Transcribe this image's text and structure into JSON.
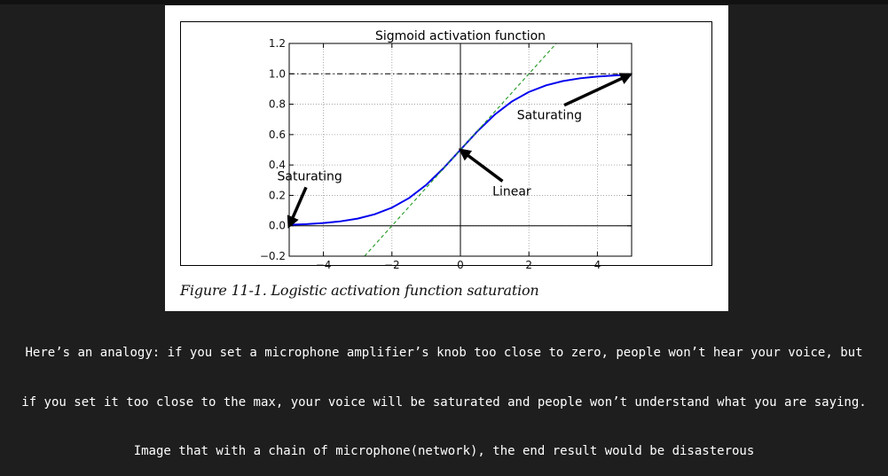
{
  "figure": {
    "caption": "Figure 11-1. Logistic activation function saturation"
  },
  "chart_data": {
    "type": "line",
    "title": "Sigmoid activation function",
    "xlabel": "",
    "ylabel": "",
    "xlim": [
      -5,
      5
    ],
    "ylim": [
      -0.2,
      1.2
    ],
    "x_ticks": [
      -4,
      -2,
      0,
      2,
      4
    ],
    "x_tick_labels": [
      "−4",
      "−2",
      "0",
      "2",
      "4"
    ],
    "y_ticks": [
      -0.2,
      0.0,
      0.2,
      0.4,
      0.6,
      0.8,
      1.0,
      1.2
    ],
    "y_tick_labels": [
      "−0.2",
      "0.0",
      "0.2",
      "0.4",
      "0.6",
      "0.8",
      "1.0",
      "1.2"
    ],
    "grid": true,
    "series": [
      {
        "style": "solid",
        "color": "#0000ee",
        "x": [
          -5,
          -4.5,
          -4,
          -3.5,
          -3,
          -2.5,
          -2,
          -1.5,
          -1,
          -0.5,
          0,
          0.5,
          1,
          1.5,
          2,
          2.5,
          3,
          3.5,
          4,
          4.5,
          5
        ],
        "y": [
          0.0067,
          0.011,
          0.018,
          0.0293,
          0.0474,
          0.0759,
          0.1192,
          0.1824,
          0.2689,
          0.3775,
          0.5,
          0.6225,
          0.7311,
          0.8176,
          0.8808,
          0.9241,
          0.9526,
          0.9707,
          0.982,
          0.989,
          0.9933
        ]
      },
      {
        "style": "dashed",
        "color": "#229922",
        "x": [
          -2.8,
          2.8
        ],
        "y": [
          -0.2,
          1.2
        ]
      }
    ],
    "reference_lines": [
      {
        "orientation": "horizontal",
        "value": 0,
        "style": "solid",
        "color": "#000000"
      },
      {
        "orientation": "horizontal",
        "value": 1,
        "style": "dashdot",
        "color": "#000000"
      },
      {
        "orientation": "vertical",
        "value": 0,
        "style": "solid",
        "color": "#000000"
      }
    ],
    "annotations": [
      {
        "text": "Saturating",
        "point": [
          5,
          1.0
        ],
        "text_at": [
          2.6,
          0.7
        ]
      },
      {
        "text": "Saturating",
        "point": [
          -5,
          0.0
        ],
        "text_at": [
          -4.4,
          0.3
        ]
      },
      {
        "text": "Linear",
        "point": [
          0,
          0.5
        ],
        "text_at": [
          1.5,
          0.2
        ]
      }
    ]
  },
  "note": {
    "lines": [
      "Here’s an analogy: if you set a microphone amplifier’s knob too close to zero, people won’t hear your voice, but",
      "if you set it too close to the max, your voice will be saturated and people won’t understand what you are saying.",
      "Image that with a chain of microphone(network), the end result would be disasterous"
    ]
  }
}
